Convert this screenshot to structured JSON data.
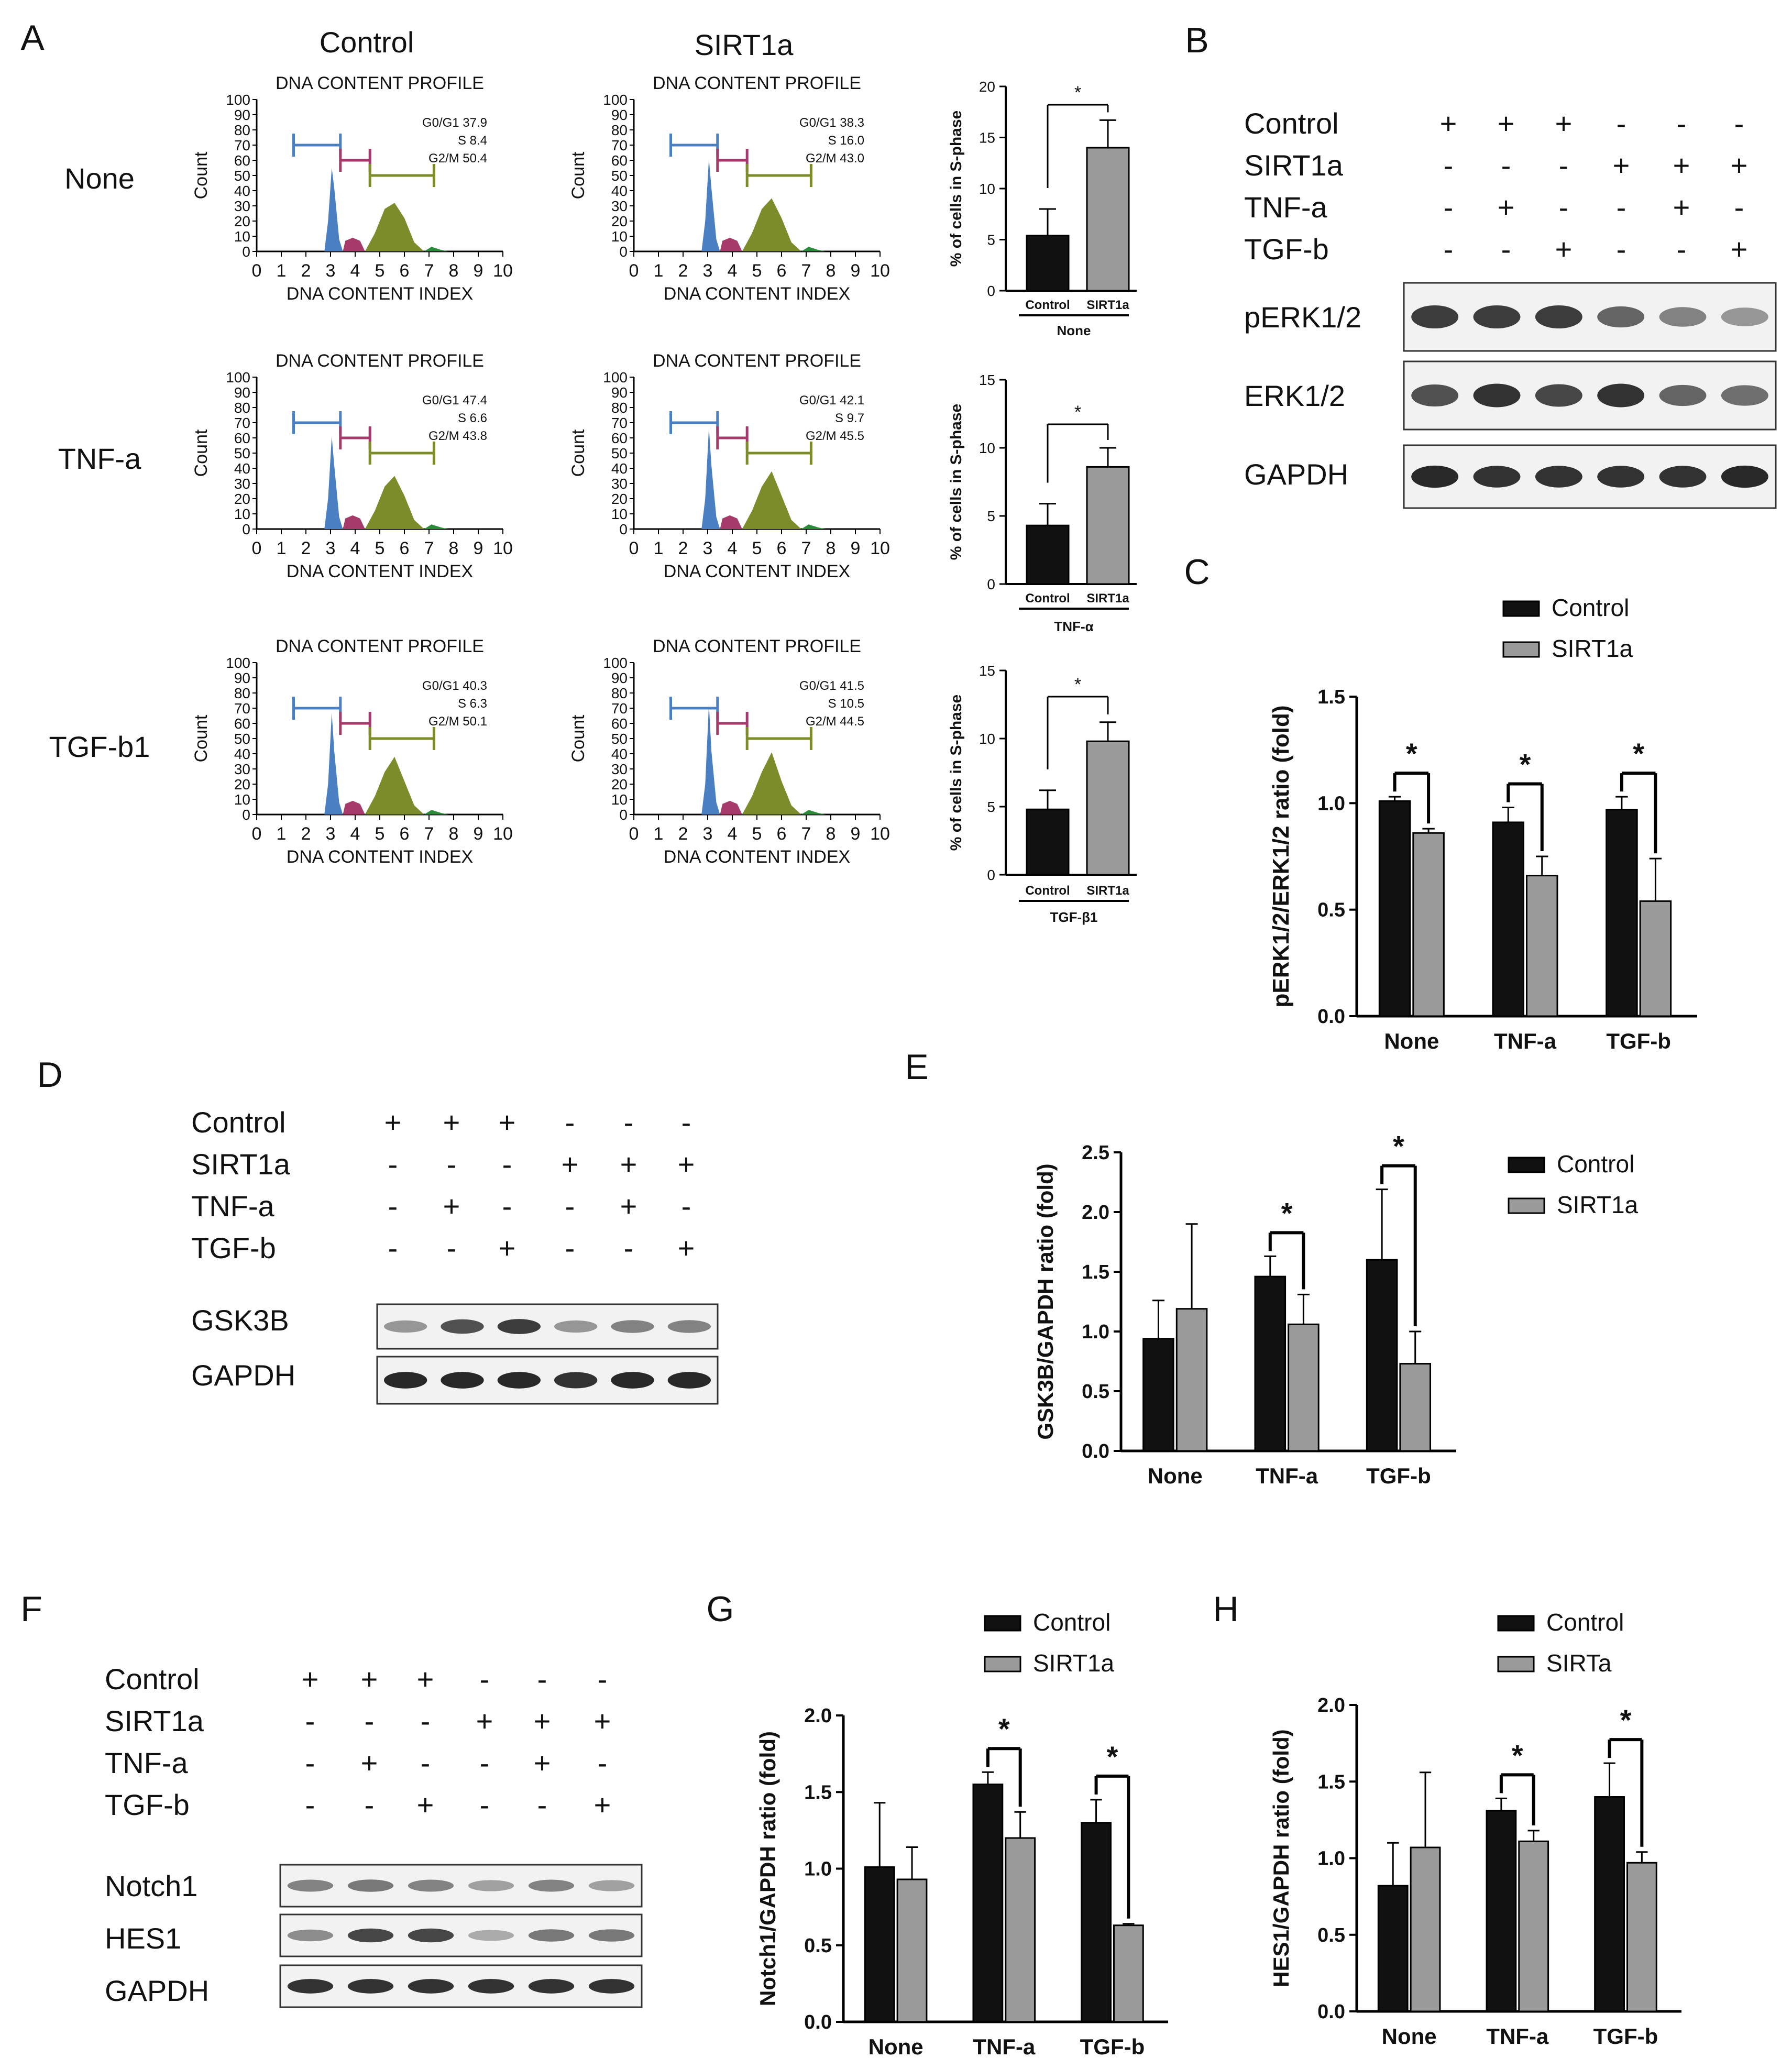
{
  "panel_labels": [
    "A",
    "B",
    "C",
    "D",
    "E",
    "F",
    "G",
    "H"
  ],
  "flow": {
    "column_titles": [
      "Control",
      "SIRT1a"
    ],
    "row_labels": [
      "None",
      "TNF-a",
      "TGF-b1"
    ],
    "plot_title": "DNA CONTENT PROFILE",
    "x_axis_label": "DNA CONTENT INDEX",
    "y_axis_label": "Count",
    "x_ticks": [
      "0",
      "1",
      "2",
      "3",
      "4",
      "5",
      "6",
      "7",
      "8",
      "9",
      "10"
    ],
    "y_ticks": [
      "100",
      "90",
      "80",
      "70",
      "60",
      "50",
      "40",
      "30",
      "20",
      "10",
      "0"
    ],
    "stats": [
      [
        [
          "G0/G1 37.9",
          "S 8.4",
          "G2/M 50.4"
        ],
        [
          "G0/G1 38.3",
          "S 16.0",
          "G2/M 43.0"
        ]
      ],
      [
        [
          "G0/G1 47.4",
          "S 6.6",
          "G2/M 43.8"
        ],
        [
          "G0/G1 42.1",
          "S 9.7",
          "G2/M 45.5"
        ]
      ],
      [
        [
          "G0/G1 40.3",
          "S 6.3",
          "G2/M 50.1"
        ],
        [
          "G0/G1 41.5",
          "S 10.5",
          "G2/M 44.5"
        ]
      ]
    ],
    "colors": {
      "g1": "#4a7fc1",
      "s": "#a63a6a",
      "g2": "#7d8c2a",
      "green": "#2a8c3a"
    }
  },
  "blot_labels": {
    "rows": [
      "Control",
      "SIRT1a",
      "TNF-a",
      "TGF-b"
    ],
    "signs": [
      [
        "+",
        "+",
        "+",
        "-",
        "-",
        "-"
      ],
      [
        "-",
        "-",
        "-",
        "+",
        "+",
        "+"
      ],
      [
        "-",
        "+",
        "-",
        "-",
        "+",
        "-"
      ],
      [
        "-",
        "-",
        "+",
        "-",
        "-",
        "+"
      ]
    ],
    "panel_b_bands": [
      "pERK1/2",
      "ERK1/2",
      "GAPDH"
    ],
    "panel_d_bands": [
      "GSK3B",
      "GAPDH"
    ],
    "panel_f_bands": [
      "Notch1",
      "HES1",
      "GAPDH"
    ]
  },
  "chart_data": [
    {
      "id": "A-none",
      "type": "bar",
      "categories": [
        "Control",
        "SIRT1a"
      ],
      "values": [
        5.4,
        14.0
      ],
      "errors": [
        2.6,
        2.7
      ],
      "ylabel": "% of cells in S-phase",
      "ylim": [
        0,
        20
      ],
      "yticks": [
        "0",
        "5",
        "10",
        "15",
        "20"
      ],
      "group_label": "None",
      "significance": "*"
    },
    {
      "id": "A-tnf",
      "type": "bar",
      "categories": [
        "Control",
        "SIRT1a"
      ],
      "values": [
        4.3,
        8.6
      ],
      "errors": [
        1.6,
        1.4
      ],
      "ylabel": "% of cells in S-phase",
      "ylim": [
        0,
        15
      ],
      "yticks": [
        "0",
        "5",
        "10",
        "15"
      ],
      "group_label": "TNF-α",
      "significance": "*"
    },
    {
      "id": "A-tgf",
      "type": "bar",
      "categories": [
        "Control",
        "SIRT1a"
      ],
      "values": [
        4.8,
        9.8
      ],
      "errors": [
        1.4,
        1.4
      ],
      "ylabel": "% of cells in S-phase",
      "ylim": [
        0,
        15
      ],
      "yticks": [
        "0",
        "5",
        "10",
        "15"
      ],
      "group_label": "TGF-β1",
      "significance": "*"
    },
    {
      "id": "C",
      "type": "bar",
      "categories": [
        "None",
        "TNF-a",
        "TGF-b"
      ],
      "series": [
        {
          "name": "Control",
          "values": [
            1.01,
            0.91,
            0.97
          ],
          "errors": [
            0.02,
            0.07,
            0.06
          ]
        },
        {
          "name": "SIRT1a",
          "values": [
            0.86,
            0.66,
            0.54
          ],
          "errors": [
            0.02,
            0.09,
            0.2
          ]
        }
      ],
      "ylabel": "pERK1/2/ERK1/2 ratio (fold)",
      "ylim": [
        0,
        1.5
      ],
      "yticks": [
        "0.0",
        "0.5",
        "1.0",
        "1.5"
      ],
      "significance": [
        "*",
        "*",
        "*"
      ]
    },
    {
      "id": "E",
      "type": "bar",
      "categories": [
        "None",
        "TNF-a",
        "TGF-b"
      ],
      "series": [
        {
          "name": "Control",
          "values": [
            0.94,
            1.46,
            1.6
          ],
          "errors": [
            0.32,
            0.17,
            0.59
          ]
        },
        {
          "name": "SIRT1a",
          "values": [
            1.19,
            1.06,
            0.73
          ],
          "errors": [
            0.71,
            0.25,
            0.27
          ]
        }
      ],
      "ylabel": "GSK3B/GAPDH ratio (fold)",
      "ylim": [
        0,
        2.5
      ],
      "yticks": [
        "0.0",
        "0.5",
        "1.0",
        "1.5",
        "2.0",
        "2.5"
      ],
      "significance": [
        "",
        "*",
        "*"
      ]
    },
    {
      "id": "G",
      "type": "bar",
      "categories": [
        "None",
        "TNF-a",
        "TGF-b"
      ],
      "series": [
        {
          "name": "Control",
          "values": [
            1.01,
            1.55,
            1.3
          ],
          "errors": [
            0.42,
            0.08,
            0.15
          ]
        },
        {
          "name": "SIRT1a",
          "values": [
            0.93,
            1.2,
            0.63
          ],
          "errors": [
            0.21,
            0.17,
            0.01
          ]
        }
      ],
      "ylabel": "Notch1/GAPDH ratio (fold)",
      "ylim": [
        0,
        2.0
      ],
      "yticks": [
        "0.0",
        "0.5",
        "1.0",
        "1.5",
        "2.0"
      ],
      "significance": [
        "",
        "*",
        "*"
      ]
    },
    {
      "id": "H",
      "type": "bar",
      "categories": [
        "None",
        "TNF-a",
        "TGF-b"
      ],
      "series": [
        {
          "name": "Control",
          "values": [
            0.82,
            1.31,
            1.4
          ],
          "errors": [
            0.28,
            0.08,
            0.22
          ]
        },
        {
          "name": "SIRTa",
          "values": [
            1.07,
            1.11,
            0.97
          ],
          "errors": [
            0.49,
            0.07,
            0.07
          ]
        }
      ],
      "ylabel": "HES1/GAPDH ratio (fold)",
      "ylim": [
        0,
        2.0
      ],
      "yticks": [
        "0.0",
        "0.5",
        "1.0",
        "1.5",
        "2.0"
      ],
      "significance": [
        "",
        "*",
        "*"
      ]
    }
  ]
}
